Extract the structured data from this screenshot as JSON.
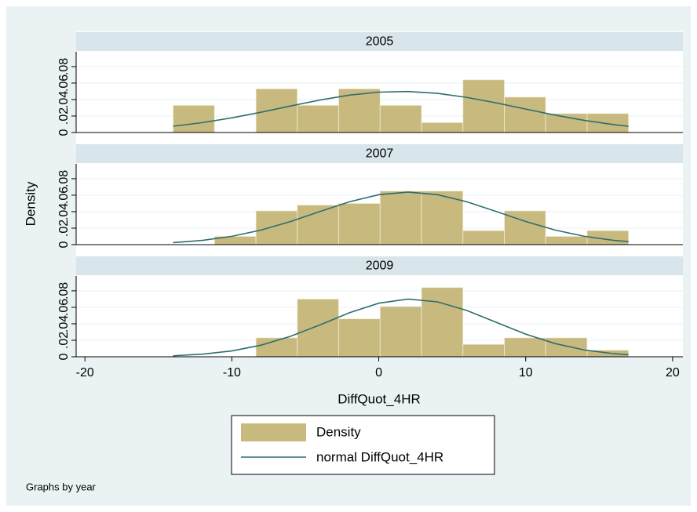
{
  "chart_data": [
    {
      "type": "histogram",
      "title": "2005",
      "bins": [
        -14,
        -11.18,
        -8.36,
        -5.55,
        -2.73,
        0.09,
        2.91,
        5.73,
        8.55,
        11.36,
        14.18,
        17
      ],
      "values": [
        0.033,
        0,
        0.053,
        0.033,
        0.053,
        0.033,
        0.012,
        0.064,
        0.043,
        0.023,
        0.023
      ],
      "curve": {
        "x": [
          -14,
          -12,
          -10,
          -8,
          -6,
          -4,
          -2,
          0,
          2,
          4,
          6,
          8,
          10,
          12,
          14,
          16,
          17
        ],
        "values": [
          0.0076,
          0.012,
          0.0178,
          0.0247,
          0.0322,
          0.0394,
          0.0454,
          0.049,
          0.0498,
          0.0475,
          0.0426,
          0.0359,
          0.0284,
          0.0211,
          0.0147,
          0.0096,
          0.0076
        ]
      },
      "ylim": [
        0,
        0.098
      ],
      "yticks": [
        0,
        {
          "value": 0.02,
          "label": ".02"
        },
        {
          "value": 0.04,
          "label": ".04"
        },
        {
          "value": 0.06,
          "label": ".06"
        },
        {
          "value": 0.08,
          "label": ".08"
        }
      ]
    },
    {
      "type": "histogram",
      "title": "2007",
      "bins": [
        -14,
        -11.18,
        -8.36,
        -5.55,
        -2.73,
        0.09,
        2.91,
        5.73,
        8.55,
        11.36,
        14.18,
        17
      ],
      "values": [
        0,
        0.01,
        0.041,
        0.048,
        0.05,
        0.065,
        0.065,
        0.017,
        0.041,
        0.01,
        0.017
      ],
      "curve": {
        "x": [
          -14,
          -12,
          -10,
          -8,
          -6,
          -4,
          -2,
          0,
          2,
          4,
          6,
          8,
          10,
          12,
          14,
          16,
          17
        ],
        "values": [
          0.0024,
          0.0052,
          0.0101,
          0.0177,
          0.0281,
          0.0402,
          0.052,
          0.0606,
          0.0638,
          0.0606,
          0.052,
          0.0402,
          0.0281,
          0.0177,
          0.0101,
          0.0052,
          0.0036
        ]
      },
      "ylim": [
        0,
        0.098
      ],
      "yticks": [
        0,
        {
          "value": 0.02,
          "label": ".02"
        },
        {
          "value": 0.04,
          "label": ".04"
        },
        {
          "value": 0.06,
          "label": ".06"
        },
        {
          "value": 0.08,
          "label": ".08"
        }
      ]
    },
    {
      "type": "histogram",
      "title": "2009",
      "bins": [
        -14,
        -11.18,
        -8.36,
        -5.55,
        -2.73,
        0.09,
        2.91,
        5.73,
        8.55,
        11.36,
        14.18,
        17
      ],
      "values": [
        0,
        0,
        0.023,
        0.07,
        0.046,
        0.061,
        0.084,
        0.015,
        0.023,
        0.023,
        0.008
      ],
      "curve": {
        "x": [
          -14,
          -12,
          -10,
          -8,
          -6,
          -4,
          -2,
          0,
          2,
          4,
          6,
          8,
          10,
          12,
          14,
          16,
          17
        ],
        "values": [
          0.0012,
          0.0032,
          0.0071,
          0.0141,
          0.0249,
          0.0387,
          0.0534,
          0.065,
          0.07,
          0.0666,
          0.0561,
          0.0417,
          0.0275,
          0.016,
          0.0082,
          0.0037,
          0.0024
        ]
      },
      "ylim": [
        0,
        0.098
      ],
      "yticks": [
        0,
        {
          "value": 0.02,
          "label": ".02"
        },
        {
          "value": 0.04,
          "label": ".04"
        },
        {
          "value": 0.06,
          "label": ".06"
        },
        {
          "value": 0.08,
          "label": ".08"
        }
      ]
    }
  ],
  "figure": {
    "x_label": "DiffQuot_4HR",
    "y_label": "Density",
    "xlim": [
      -20.6,
      20.7
    ],
    "xticks": [
      -20,
      -10,
      0,
      10,
      20
    ],
    "grid": true,
    "legend": [
      {
        "name": "Density",
        "color": "#c8b97f"
      },
      {
        "name": "normal DiffQuot_4HR",
        "color": "#2d6e6f"
      }
    ],
    "note": "Graphs by year"
  }
}
